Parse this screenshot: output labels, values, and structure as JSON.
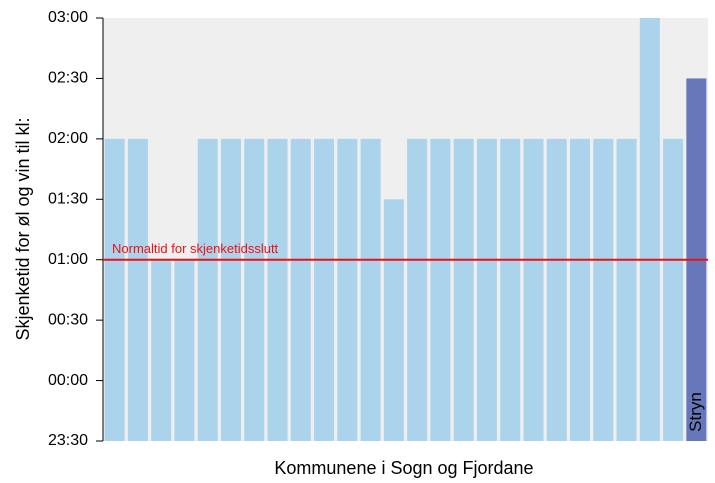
{
  "chart_data": {
    "type": "bar",
    "y_label": "Skjenketid for øl og vin til kl:",
    "x_label": "Kommunene i Sogn og Fjordane",
    "categories": [
      null,
      null,
      null,
      null,
      null,
      null,
      null,
      null,
      null,
      null,
      null,
      null,
      null,
      null,
      null,
      null,
      null,
      null,
      null,
      null,
      null,
      null,
      null,
      null,
      null,
      "Stryn"
    ],
    "values": [
      2,
      2,
      1,
      1,
      2,
      2,
      2,
      2,
      2,
      2,
      2,
      2,
      1.5,
      2,
      2,
      2,
      2,
      2,
      2,
      2,
      2,
      2,
      2,
      3,
      2,
      2.5
    ],
    "colors": [
      "#acd3ec",
      "#acd3ec",
      "#acd3ec",
      "#acd3ec",
      "#acd3ec",
      "#acd3ec",
      "#acd3ec",
      "#acd3ec",
      "#acd3ec",
      "#acd3ec",
      "#acd3ec",
      "#acd3ec",
      "#acd3ec",
      "#acd3ec",
      "#acd3ec",
      "#acd3ec",
      "#acd3ec",
      "#acd3ec",
      "#acd3ec",
      "#acd3ec",
      "#acd3ec",
      "#acd3ec",
      "#acd3ec",
      "#acd3ec",
      "#acd3ec",
      "#6678b9"
    ],
    "ylim": [
      -0.5,
      3
    ],
    "yticks": [
      {
        "value": -0.5,
        "label": "23:30"
      },
      {
        "value": 0,
        "label": "00:00"
      },
      {
        "value": 0.5,
        "label": "00:30"
      },
      {
        "value": 1,
        "label": "01:00"
      },
      {
        "value": 1.5,
        "label": "01:30"
      },
      {
        "value": 2,
        "label": "02:00"
      },
      {
        "value": 2.5,
        "label": "02:30"
      },
      {
        "value": 3,
        "label": "03:00"
      }
    ],
    "reference_line": {
      "value": 1,
      "label": "Normaltid for skjenketidsslutt",
      "color": "#ee1111"
    }
  }
}
